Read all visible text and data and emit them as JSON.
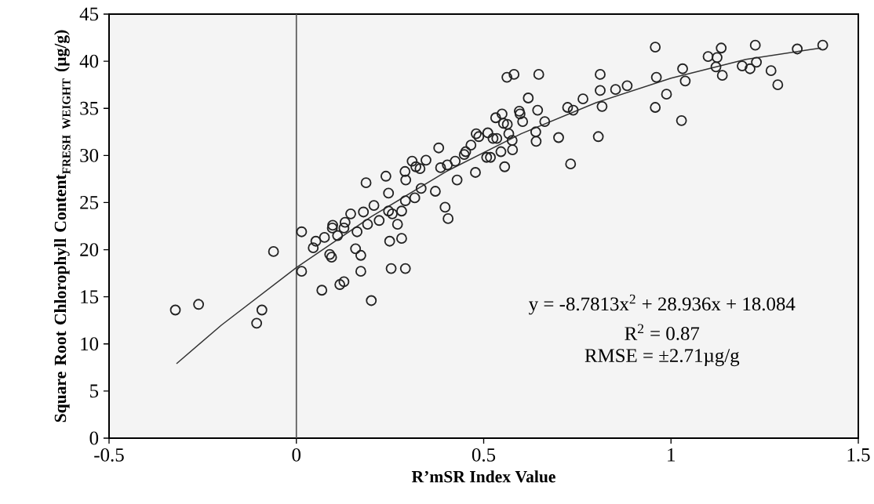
{
  "chart_data": {
    "type": "scatter",
    "xlabel": "R’mSR Index Value",
    "ylabel": "\\text{Square Root Chlorophyll Content}_{\\text{FRESH WEIGHT}}\\text{ (µg/g)}",
    "xlim": [
      -0.5,
      1.5
    ],
    "xticks": [
      -0.5,
      0,
      0.5,
      1,
      1.5
    ],
    "ylim": [
      0,
      45
    ],
    "yticks": [
      0,
      5,
      10,
      15,
      20,
      25,
      30,
      35,
      40,
      45
    ],
    "grid": false,
    "marker": "circle",
    "ref_lines": [
      {
        "axis": "x",
        "value": 0,
        "color": "#555555"
      }
    ],
    "annotations": [
      "y = -8.7813x$^{2}$ + 28.936x + 18.084",
      "R$^{2}$ = 0.87",
      "RMSE = ±2.71µg/g"
    ],
    "series": [
      {
        "type": "scatter",
        "color": "#222222",
        "x": [
          -0.323,
          -0.261,
          -0.092,
          -0.106,
          -0.061,
          0.014,
          0.014,
          0.068,
          0.045,
          0.052,
          0.075,
          0.089,
          0.094,
          0.097,
          0.096,
          0.11,
          0.116,
          0.127,
          0.13,
          0.127,
          0.145,
          0.2,
          0.172,
          0.158,
          0.172,
          0.162,
          0.179,
          0.19,
          0.186,
          0.207,
          0.221,
          0.239,
          0.246,
          0.246,
          0.256,
          0.27,
          0.249,
          0.281,
          0.253,
          0.291,
          0.281,
          0.291,
          0.29,
          0.292,
          0.316,
          0.309,
          0.319,
          0.33,
          0.333,
          0.346,
          0.371,
          0.38,
          0.385,
          0.403,
          0.397,
          0.405,
          0.424,
          0.429,
          0.448,
          0.452,
          0.466,
          0.478,
          0.48,
          0.487,
          0.508,
          0.518,
          0.511,
          0.525,
          0.535,
          0.532,
          0.549,
          0.553,
          0.563,
          0.546,
          0.556,
          0.567,
          0.576,
          0.577,
          0.562,
          0.581,
          0.595,
          0.597,
          0.604,
          0.619,
          0.647,
          0.644,
          0.639,
          0.64,
          0.663,
          0.7,
          0.732,
          0.724,
          0.739,
          0.765,
          0.806,
          0.811,
          0.811,
          0.816,
          0.852,
          0.883,
          0.958,
          0.961,
          0.958,
          0.988,
          1.028,
          1.031,
          1.038,
          1.099,
          1.123,
          1.134,
          1.12,
          1.137,
          1.19,
          1.211,
          1.228,
          1.225,
          1.267,
          1.285,
          1.337,
          1.405
        ],
        "values": [
          13.6,
          14.2,
          13.6,
          12.2,
          19.8,
          21.9,
          17.7,
          15.7,
          20.2,
          20.9,
          21.3,
          19.5,
          19.2,
          22.6,
          22.3,
          21.5,
          16.3,
          16.6,
          22.9,
          22.3,
          23.8,
          14.6,
          17.7,
          20.1,
          19.4,
          21.9,
          24.0,
          22.7,
          27.1,
          24.7,
          23.1,
          27.8,
          26.0,
          24.1,
          23.8,
          22.7,
          20.9,
          21.2,
          18.0,
          18.0,
          24.1,
          25.2,
          28.3,
          27.4,
          25.5,
          29.4,
          28.8,
          28.6,
          26.5,
          29.5,
          26.2,
          30.8,
          28.7,
          29.0,
          24.5,
          23.3,
          29.4,
          27.4,
          30.1,
          30.4,
          31.1,
          28.2,
          32.3,
          32.0,
          29.8,
          29.8,
          32.4,
          31.8,
          31.8,
          34.0,
          34.4,
          33.4,
          33.3,
          30.4,
          28.8,
          32.3,
          31.6,
          30.6,
          38.3,
          38.6,
          34.7,
          34.4,
          33.6,
          36.1,
          38.6,
          34.8,
          32.5,
          31.5,
          33.6,
          31.9,
          29.1,
          35.1,
          34.8,
          36.0,
          32.0,
          38.6,
          36.9,
          35.2,
          37.0,
          37.4,
          41.5,
          38.3,
          35.1,
          36.5,
          33.7,
          39.2,
          37.9,
          40.5,
          40.4,
          41.4,
          39.4,
          38.5,
          39.5,
          39.2,
          39.9,
          41.7,
          39.0,
          37.5,
          41.3,
          41.7
        ]
      },
      {
        "type": "line",
        "color": "#333333",
        "marker": "none",
        "line_style": "solid",
        "x": [
          -0.32,
          -0.2,
          0,
          0.2,
          0.4,
          0.6,
          0.8,
          1.0,
          1.2,
          1.4
        ],
        "values": [
          7.9,
          12.0,
          18.1,
          23.5,
          28.3,
          32.3,
          35.6,
          38.2,
          40.2,
          41.4
        ]
      }
    ]
  }
}
